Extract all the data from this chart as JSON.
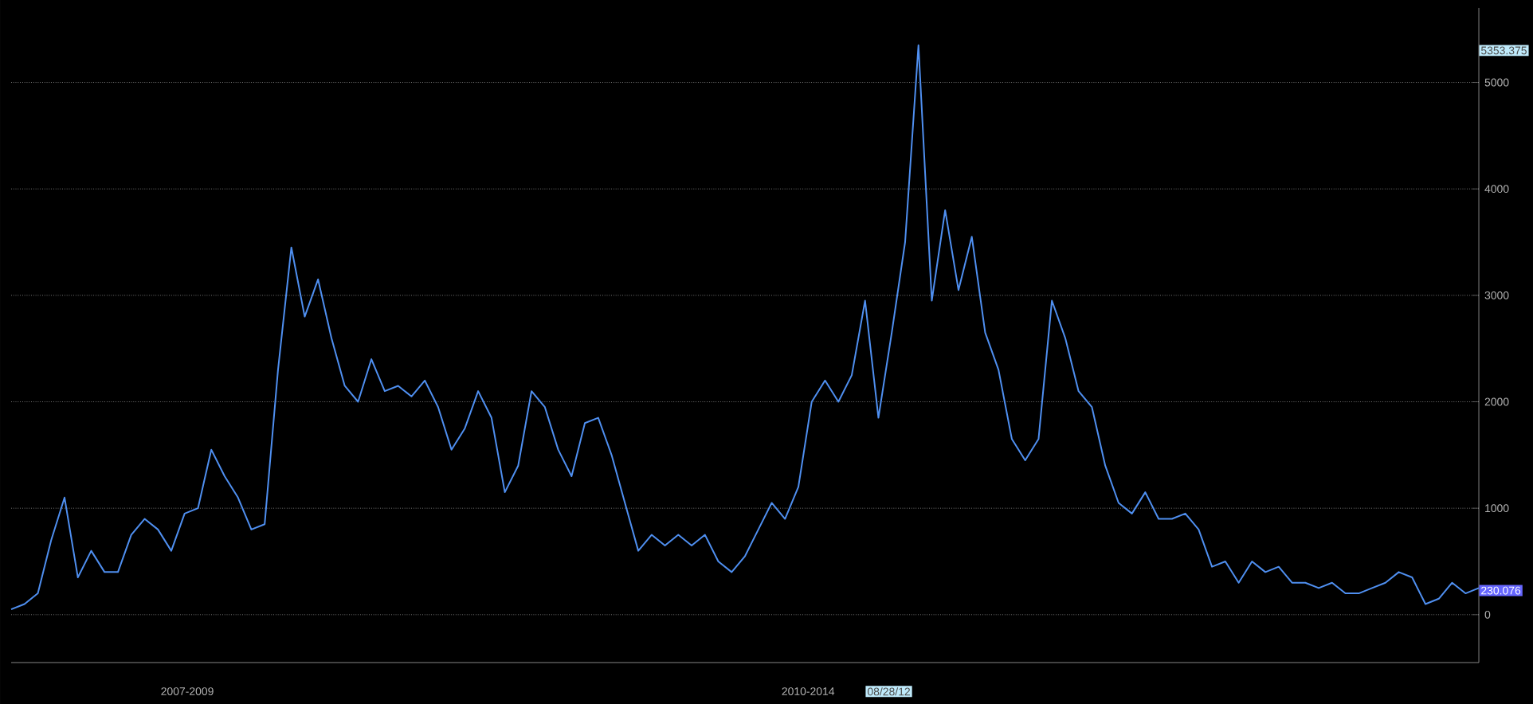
{
  "chart_data": {
    "type": "line",
    "categories": [
      null,
      null,
      null,
      null,
      null,
      null,
      null,
      null,
      null,
      null,
      null,
      null,
      null,
      null,
      null,
      null,
      null,
      null,
      null,
      null,
      null,
      null,
      null,
      null,
      null,
      null,
      null,
      null,
      null,
      null,
      null,
      null,
      null,
      null,
      null,
      null,
      null,
      null,
      null,
      null,
      null,
      null,
      null,
      null,
      null,
      null,
      null,
      null,
      null,
      null,
      null,
      null,
      null,
      null,
      null,
      null,
      null,
      null,
      null,
      null,
      null,
      null,
      null,
      null,
      null,
      null,
      null,
      null,
      null,
      null,
      null,
      null,
      null,
      null,
      null,
      null,
      null,
      null,
      null,
      null,
      null,
      null,
      null,
      null,
      null,
      null,
      null,
      null,
      null,
      null,
      null,
      null,
      null,
      null,
      null,
      null,
      null,
      null,
      null,
      null,
      null,
      null,
      null,
      null,
      null,
      null,
      null,
      null,
      null,
      null,
      null
    ],
    "series": [
      {
        "color": "#4f8ff0",
        "values": [
          50,
          100,
          200,
          700,
          1100,
          350,
          600,
          400,
          400,
          750,
          900,
          800,
          600,
          950,
          1000,
          1550,
          1300,
          1100,
          800,
          850,
          2300,
          3450,
          2800,
          3150,
          2600,
          2150,
          2000,
          2400,
          2100,
          2150,
          2050,
          2200,
          1950,
          1550,
          1750,
          2100,
          1850,
          1150,
          1400,
          2100,
          1950,
          1550,
          1300,
          1800,
          1850,
          1500,
          1050,
          600,
          750,
          650,
          750,
          650,
          750,
          500,
          400,
          550,
          800,
          1050,
          900,
          1200,
          2000,
          2200,
          2000,
          2250,
          2950,
          1850,
          2650,
          3500,
          5350,
          2950,
          3800,
          3050,
          3550,
          2650,
          2300,
          1650,
          1450,
          1650,
          2950,
          2600,
          2100,
          1950,
          1400,
          1050,
          950,
          1150,
          900,
          900,
          950,
          800,
          450,
          500,
          300,
          500,
          400,
          450,
          300,
          300,
          250,
          300,
          200,
          200,
          250,
          300,
          400,
          350,
          100,
          150,
          300,
          200,
          250
        ]
      }
    ],
    "ylim": [
      -450,
      5700
    ],
    "yticks": [
      0,
      1000,
      2000,
      3000,
      4000,
      5000
    ],
    "grid": "y",
    "annotations": [
      "5353.375",
      "230.076",
      "2007-2009",
      "2010-2014",
      "08/28/12"
    ]
  }
}
